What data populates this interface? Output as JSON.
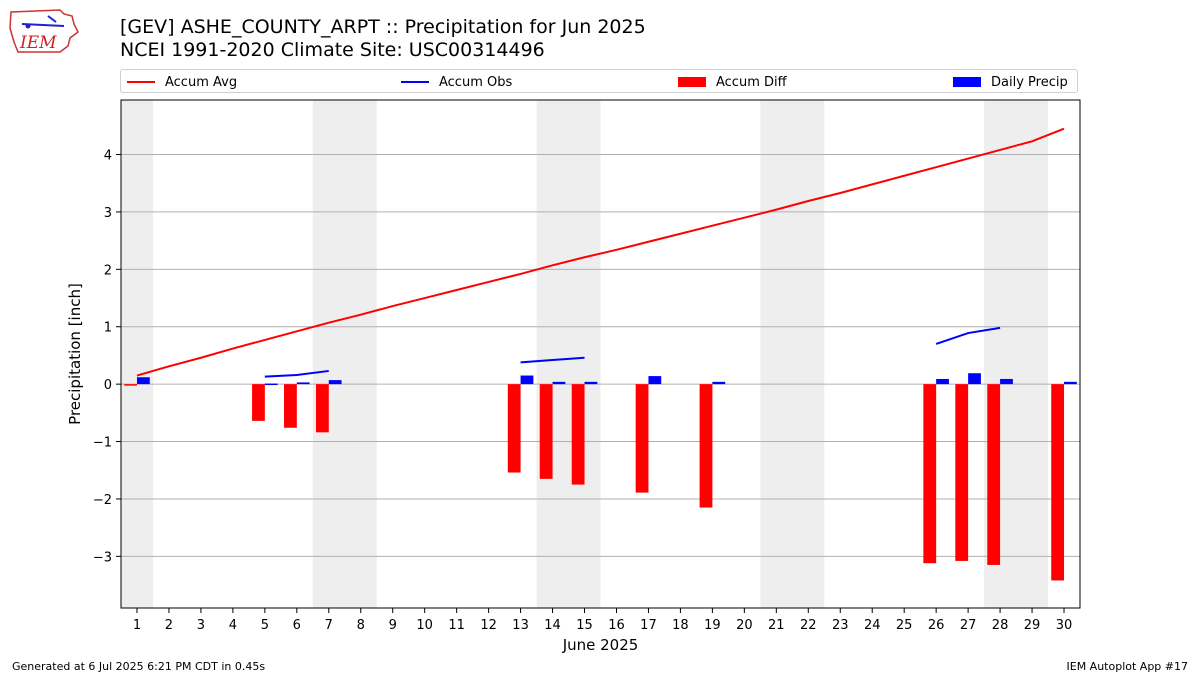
{
  "header": {
    "title_line1": "[GEV] ASHE_COUNTY_ARPT :: Precipitation for Jun 2025",
    "title_line2": "NCEI 1991-2020 Climate Site: USC00314496"
  },
  "logo": {
    "text": "IEM"
  },
  "legend": {
    "accum_avg": "Accum Avg",
    "accum_obs": "Accum Obs",
    "accum_diff": "Accum Diff",
    "daily_precip": "Daily Precip"
  },
  "footer": {
    "left": "Generated at 6 Jul 2025 6:21 PM CDT in 0.45s",
    "right": "IEM Autoplot App #17"
  },
  "colors": {
    "accum_avg": "#ff0000",
    "accum_obs": "#0000ff",
    "accum_diff": "#ff0000",
    "daily_precip": "#0000ff",
    "weekend_shade": "#eeeeee",
    "grid": "#b0b0b0"
  },
  "chart_data": {
    "type": "bar",
    "xlabel": "June 2025",
    "ylabel": "Precipitation [inch]",
    "ylim": [
      -3.9,
      4.95
    ],
    "xlim": [
      0.5,
      30.5
    ],
    "yticks": [
      -3,
      -2,
      -1,
      0,
      1,
      2,
      3,
      4
    ],
    "ytick_labels": [
      "−3",
      "−2",
      "−1",
      "0",
      "1",
      "2",
      "3",
      "4"
    ],
    "xticks": [
      1,
      2,
      3,
      4,
      5,
      6,
      7,
      8,
      9,
      10,
      11,
      12,
      13,
      14,
      15,
      16,
      17,
      18,
      19,
      20,
      21,
      22,
      23,
      24,
      25,
      26,
      27,
      28,
      29,
      30
    ],
    "grid": "horizontal",
    "legend_position": "top",
    "weekend_spans": [
      [
        0.5,
        1.5
      ],
      [
        6.5,
        8.5
      ],
      [
        13.5,
        15.5
      ],
      [
        20.5,
        22.5
      ],
      [
        27.5,
        29.5
      ]
    ],
    "accum_avg": {
      "name": "Accum Avg",
      "x": [
        1,
        2,
        3,
        4,
        5,
        6,
        7,
        8,
        9,
        10,
        11,
        12,
        13,
        14,
        15,
        16,
        17,
        18,
        19,
        20,
        21,
        22,
        23,
        24,
        25,
        26,
        27,
        28,
        29,
        30
      ],
      "y": [
        0.15,
        0.31,
        0.46,
        0.62,
        0.77,
        0.92,
        1.07,
        1.21,
        1.36,
        1.5,
        1.64,
        1.78,
        1.92,
        2.07,
        2.21,
        2.34,
        2.48,
        2.62,
        2.76,
        2.9,
        3.04,
        3.19,
        3.33,
        3.48,
        3.63,
        3.78,
        3.93,
        4.08,
        4.23,
        4.45
      ]
    },
    "accum_obs": {
      "name": "Accum Obs",
      "segments": [
        {
          "x": [
            5,
            6,
            7
          ],
          "y": [
            0.13,
            0.16,
            0.23
          ]
        },
        {
          "x": [
            13,
            14,
            15
          ],
          "y": [
            0.38,
            0.42,
            0.46
          ]
        },
        {
          "x": [
            26,
            27,
            28
          ],
          "y": [
            0.7,
            0.89,
            0.98
          ]
        }
      ]
    },
    "accum_diff": {
      "name": "Accum Diff",
      "x": [
        1,
        5,
        6,
        7,
        13,
        14,
        15,
        17,
        19,
        26,
        27,
        28,
        30
      ],
      "y": [
        -0.02,
        -0.64,
        -0.76,
        -0.84,
        -1.54,
        -1.65,
        -1.75,
        -1.89,
        -2.15,
        -3.12,
        -3.08,
        -3.15,
        -3.42
      ]
    },
    "daily_precip": {
      "name": "Daily Precip",
      "x": [
        1,
        5,
        6,
        7,
        13,
        14,
        15,
        17,
        19,
        26,
        27,
        28,
        30
      ],
      "y": [
        0.12,
        0.01,
        0.03,
        0.07,
        0.15,
        0.04,
        0.04,
        0.14,
        0.04,
        0.09,
        0.19,
        0.09,
        0.04
      ]
    }
  }
}
